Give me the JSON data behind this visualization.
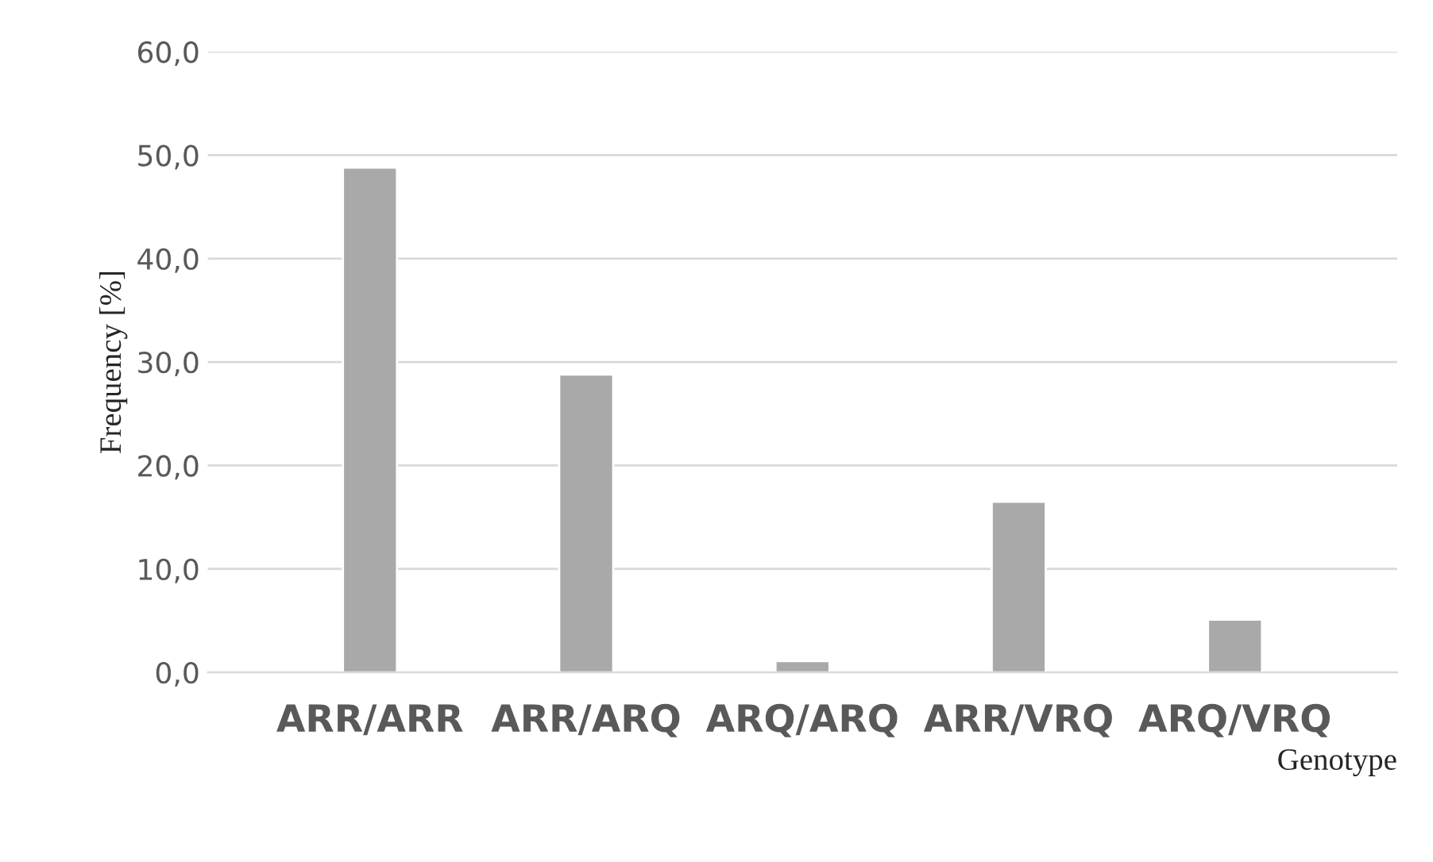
{
  "chart_data": {
    "type": "bar",
    "xlabel": "Genotype",
    "ylabel": "Frequency [%]",
    "categories": [
      "ARR/ARR",
      "ARR/ARQ",
      "ARQ/ARQ",
      "ARR/VRQ",
      "ARQ/VRQ"
    ],
    "values": [
      48.8,
      28.8,
      1.1,
      16.5,
      5.1
    ],
    "color": "#a9a9a9",
    "ylim": [
      0,
      60
    ],
    "yticks": [
      {
        "value": 0,
        "label": "0,0"
      },
      {
        "value": 10,
        "label": "10,0"
      },
      {
        "value": 20,
        "label": "20,0"
      },
      {
        "value": 30,
        "label": "30,0"
      },
      {
        "value": 40,
        "label": "40,0"
      },
      {
        "value": 50,
        "label": "50,0"
      },
      {
        "value": 60,
        "label": "60,0"
      }
    ],
    "grid": "y"
  }
}
